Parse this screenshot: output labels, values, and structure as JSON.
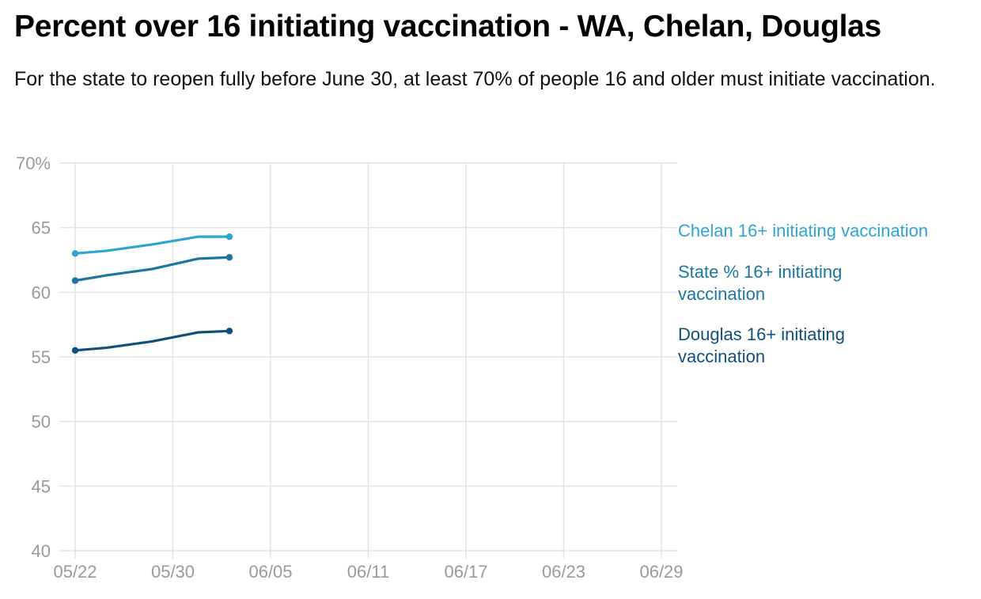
{
  "chart_data": {
    "type": "line",
    "title": "Percent over 16 initiating vaccination - WA, Chelan, Douglas",
    "subtitle": "For the state to reopen fully before June 30, at least 70% of people 16 and older must initiate vaccination.",
    "xlabel": "",
    "ylabel": "",
    "x_ticks": [
      "05/22",
      "05/30",
      "06/05",
      "06/11",
      "06/17",
      "06/23",
      "06/29"
    ],
    "y_ticks": [
      "70%",
      "65",
      "60",
      "55",
      "50",
      "45",
      "40"
    ],
    "xlim": [
      "2021-05-22",
      "2021-06-29"
    ],
    "ylim": [
      40,
      70
    ],
    "grid": true,
    "legend": "direct labels at right",
    "series": [
      {
        "name": "Chelan 16+ initiating vaccination",
        "color": "#2fa4cf",
        "points": [
          {
            "x": "2021-05-22",
            "y": 63.0
          },
          {
            "x": "2021-05-24",
            "y": 63.2
          },
          {
            "x": "2021-05-27",
            "y": 63.7
          },
          {
            "x": "2021-05-30",
            "y": 64.3
          },
          {
            "x": "2021-06-01",
            "y": 64.3
          }
        ]
      },
      {
        "name": "State % 16+ initiating vaccination",
        "color": "#1b76a0",
        "points": [
          {
            "x": "2021-05-22",
            "y": 60.9
          },
          {
            "x": "2021-05-24",
            "y": 61.3
          },
          {
            "x": "2021-05-27",
            "y": 61.8
          },
          {
            "x": "2021-05-30",
            "y": 62.6
          },
          {
            "x": "2021-06-01",
            "y": 62.7
          }
        ]
      },
      {
        "name": "Douglas 16+ initiating vaccination",
        "color": "#0f4f78",
        "points": [
          {
            "x": "2021-05-22",
            "y": 55.5
          },
          {
            "x": "2021-05-24",
            "y": 55.7
          },
          {
            "x": "2021-05-27",
            "y": 56.2
          },
          {
            "x": "2021-05-30",
            "y": 56.9
          },
          {
            "x": "2021-06-01",
            "y": 57.0
          }
        ]
      }
    ],
    "legend_lines": [
      [
        "Chelan 16+ initiating vaccination"
      ],
      [
        "State % 16+ initiating",
        "vaccination"
      ],
      [
        "Douglas 16+ initiating",
        "vaccination"
      ]
    ]
  }
}
